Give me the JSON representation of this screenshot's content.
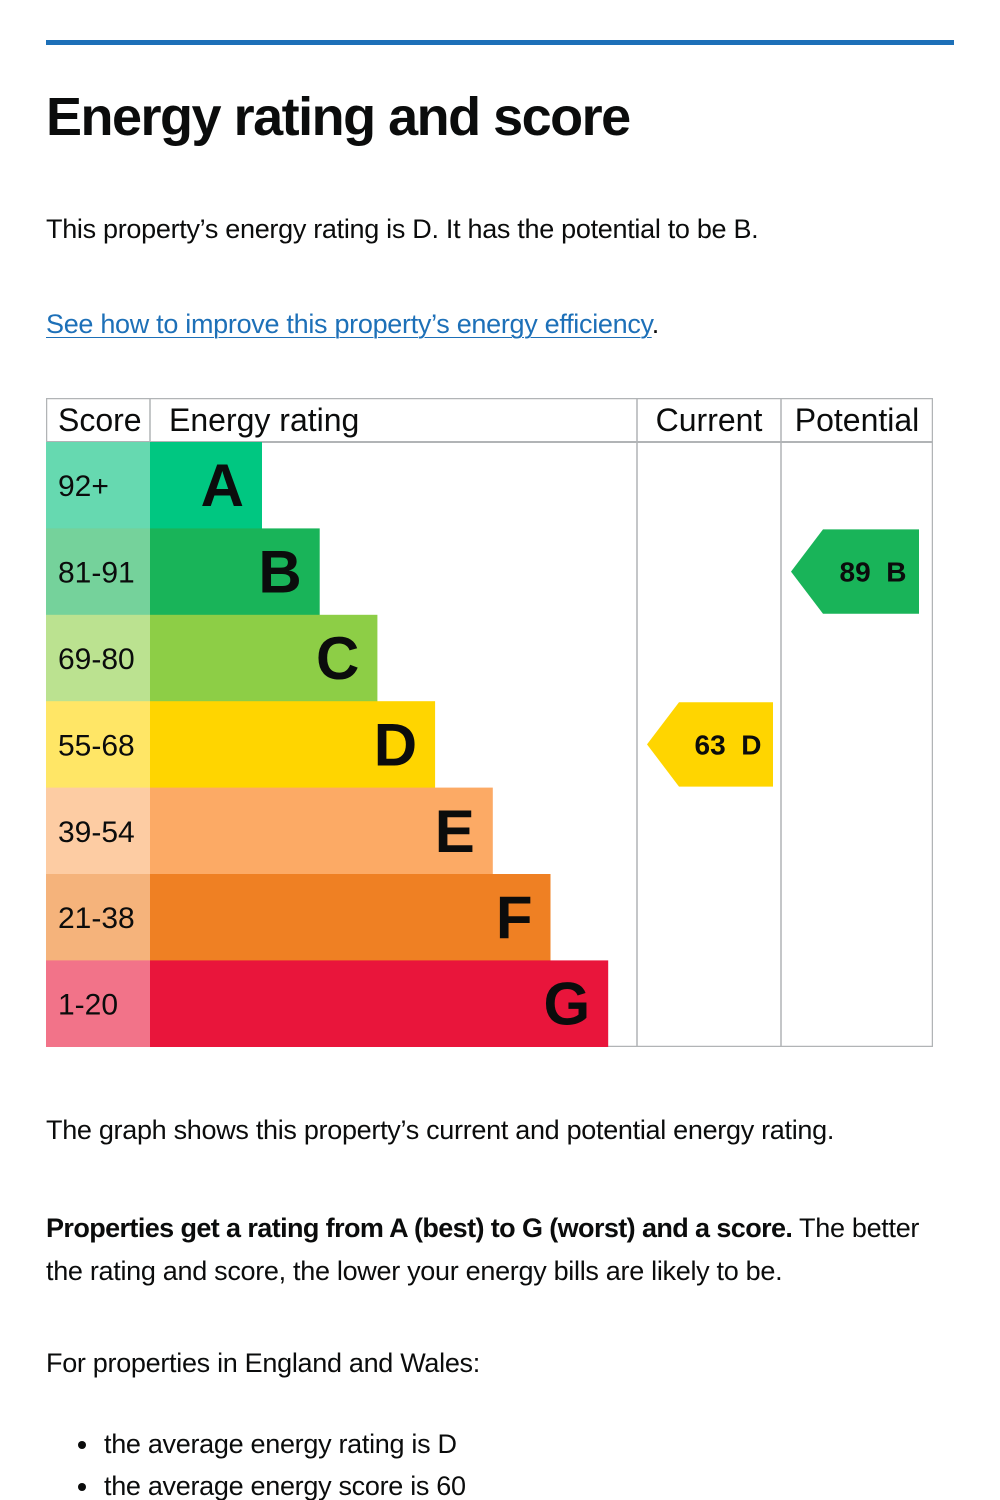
{
  "page": {
    "title": "Energy rating and score",
    "intro": "This property’s energy rating is D. It has the potential to be B.",
    "improve_link": "See how to improve this property’s energy efficiency",
    "improve_link_suffix": ".",
    "graph_caption": "The graph shows this property’s current and potential energy rating.",
    "ratings_bold": "Properties get a rating from A (best) to G (worst) and a score.",
    "ratings_rest": " The better the rating and score, the lower your energy bills are likely to be.",
    "england_wales": "For properties in England and Wales:",
    "averages": [
      "the average energy rating is D",
      "the average energy score is 60"
    ]
  },
  "chart_data": {
    "type": "bar",
    "headers": {
      "score": "Score",
      "rating": "Energy rating",
      "current": "Current",
      "potential": "Potential"
    },
    "bands": [
      {
        "letter": "A",
        "score": "92+",
        "color": "#00c781",
        "score_bg": "#66d9b0"
      },
      {
        "letter": "B",
        "score": "81-91",
        "color": "#19b459",
        "score_bg": "#75d29b"
      },
      {
        "letter": "C",
        "score": "69-80",
        "color": "#8dce46",
        "score_bg": "#bbe290"
      },
      {
        "letter": "D",
        "score": "55-68",
        "color": "#ffd500",
        "score_bg": "#ffe666"
      },
      {
        "letter": "E",
        "score": "39-54",
        "color": "#fcaa65",
        "score_bg": "#fdcca3"
      },
      {
        "letter": "F",
        "score": "21-38",
        "color": "#ef8023",
        "score_bg": "#f5b37b"
      },
      {
        "letter": "G",
        "score": "1-20",
        "color": "#e9153b",
        "score_bg": "#f27389"
      }
    ],
    "current": {
      "score": 63,
      "letter": "D",
      "label": "63  D",
      "color": "#ffd500"
    },
    "potential": {
      "score": 89,
      "letter": "B",
      "label": "89  B",
      "color": "#19b459"
    }
  }
}
